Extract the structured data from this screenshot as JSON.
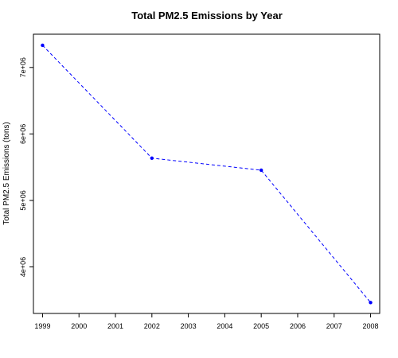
{
  "chart_data": {
    "type": "line",
    "title": "Total PM2.5 Emissions by Year",
    "xlabel": "",
    "ylabel": "Total PM2.5 Emissions (tons)",
    "x_ticks": [
      "1999",
      "2000",
      "2001",
      "2002",
      "2003",
      "2004",
      "2005",
      "2006",
      "2007",
      "2008"
    ],
    "y_ticks": [
      {
        "value": 4000000,
        "label": "4e+06"
      },
      {
        "value": 5000000,
        "label": "5e+06"
      },
      {
        "value": 6000000,
        "label": "6e+06"
      },
      {
        "value": 7000000,
        "label": "7e+06"
      }
    ],
    "xlim": [
      1998.75,
      2008.25
    ],
    "ylim": [
      3300000,
      7500000
    ],
    "grid": false,
    "series": [
      {
        "color": "#0000ff",
        "line_style": "dashed",
        "x": [
          1999,
          2002,
          2005,
          2008
        ],
        "y": [
          7332967,
          5635780,
          5454703,
          3464206
        ]
      }
    ]
  }
}
